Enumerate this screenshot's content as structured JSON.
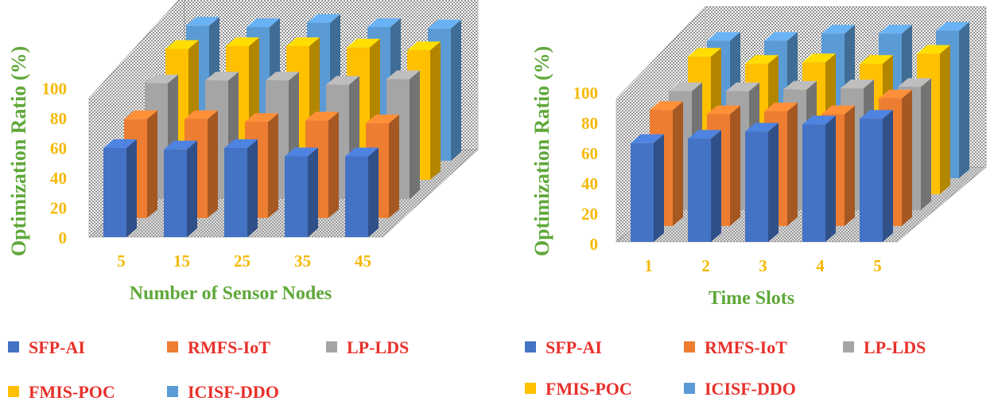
{
  "chart_data": [
    {
      "type": "bar",
      "style": "3d-column",
      "title": "",
      "xlabel": "Number of Sensor Nodes",
      "ylabel": "Optimization Ratio (%)",
      "ylim": [
        0,
        100
      ],
      "yticks": [
        "0",
        "20",
        "40",
        "60",
        "80",
        "100"
      ],
      "categories": [
        "5",
        "15",
        "25",
        "35",
        "45"
      ],
      "series": [
        {
          "name": "SFP-AI",
          "color": "#4472c4",
          "values": [
            64,
            63,
            64,
            58,
            58
          ]
        },
        {
          "name": "RMFS-IoT",
          "color": "#ed7d31",
          "values": [
            71,
            71,
            69,
            70,
            68
          ]
        },
        {
          "name": "LP-LDS",
          "color": "#a5a5a5",
          "values": [
            83,
            85,
            85,
            82,
            86
          ]
        },
        {
          "name": "FMIS-POC",
          "color": "#ffc000",
          "values": [
            94,
            96,
            96,
            95,
            93
          ]
        },
        {
          "name": "ICISF-DDO",
          "color": "#5b9bd5",
          "values": [
            97,
            96,
            99,
            96,
            95
          ]
        }
      ],
      "legend": "bottom"
    },
    {
      "type": "bar",
      "style": "3d-column",
      "title": "",
      "xlabel": "Time Slots",
      "ylabel": "Optimization Ratio (%)",
      "ylim": [
        0,
        100
      ],
      "yticks": [
        "0",
        "20",
        "40",
        "60",
        "80",
        "100"
      ],
      "categories": [
        "1",
        "2",
        "3",
        "4",
        "5"
      ],
      "series": [
        {
          "name": "SFP-AI",
          "color": "#4472c4",
          "values": [
            69,
            72,
            77,
            82,
            86
          ]
        },
        {
          "name": "RMFS-IoT",
          "color": "#ed7d31",
          "values": [
            81,
            78,
            80,
            78,
            89
          ]
        },
        {
          "name": "LP-LDS",
          "color": "#a5a5a5",
          "values": [
            83,
            83,
            84,
            85,
            86
          ]
        },
        {
          "name": "FMIS-POC",
          "color": "#ffc000",
          "values": [
            96,
            91,
            92,
            91,
            98
          ]
        },
        {
          "name": "ICISF-DDO",
          "color": "#5b9bd5",
          "values": [
            96,
            96,
            101,
            101,
            103
          ]
        }
      ],
      "legend": "bottom"
    }
  ]
}
